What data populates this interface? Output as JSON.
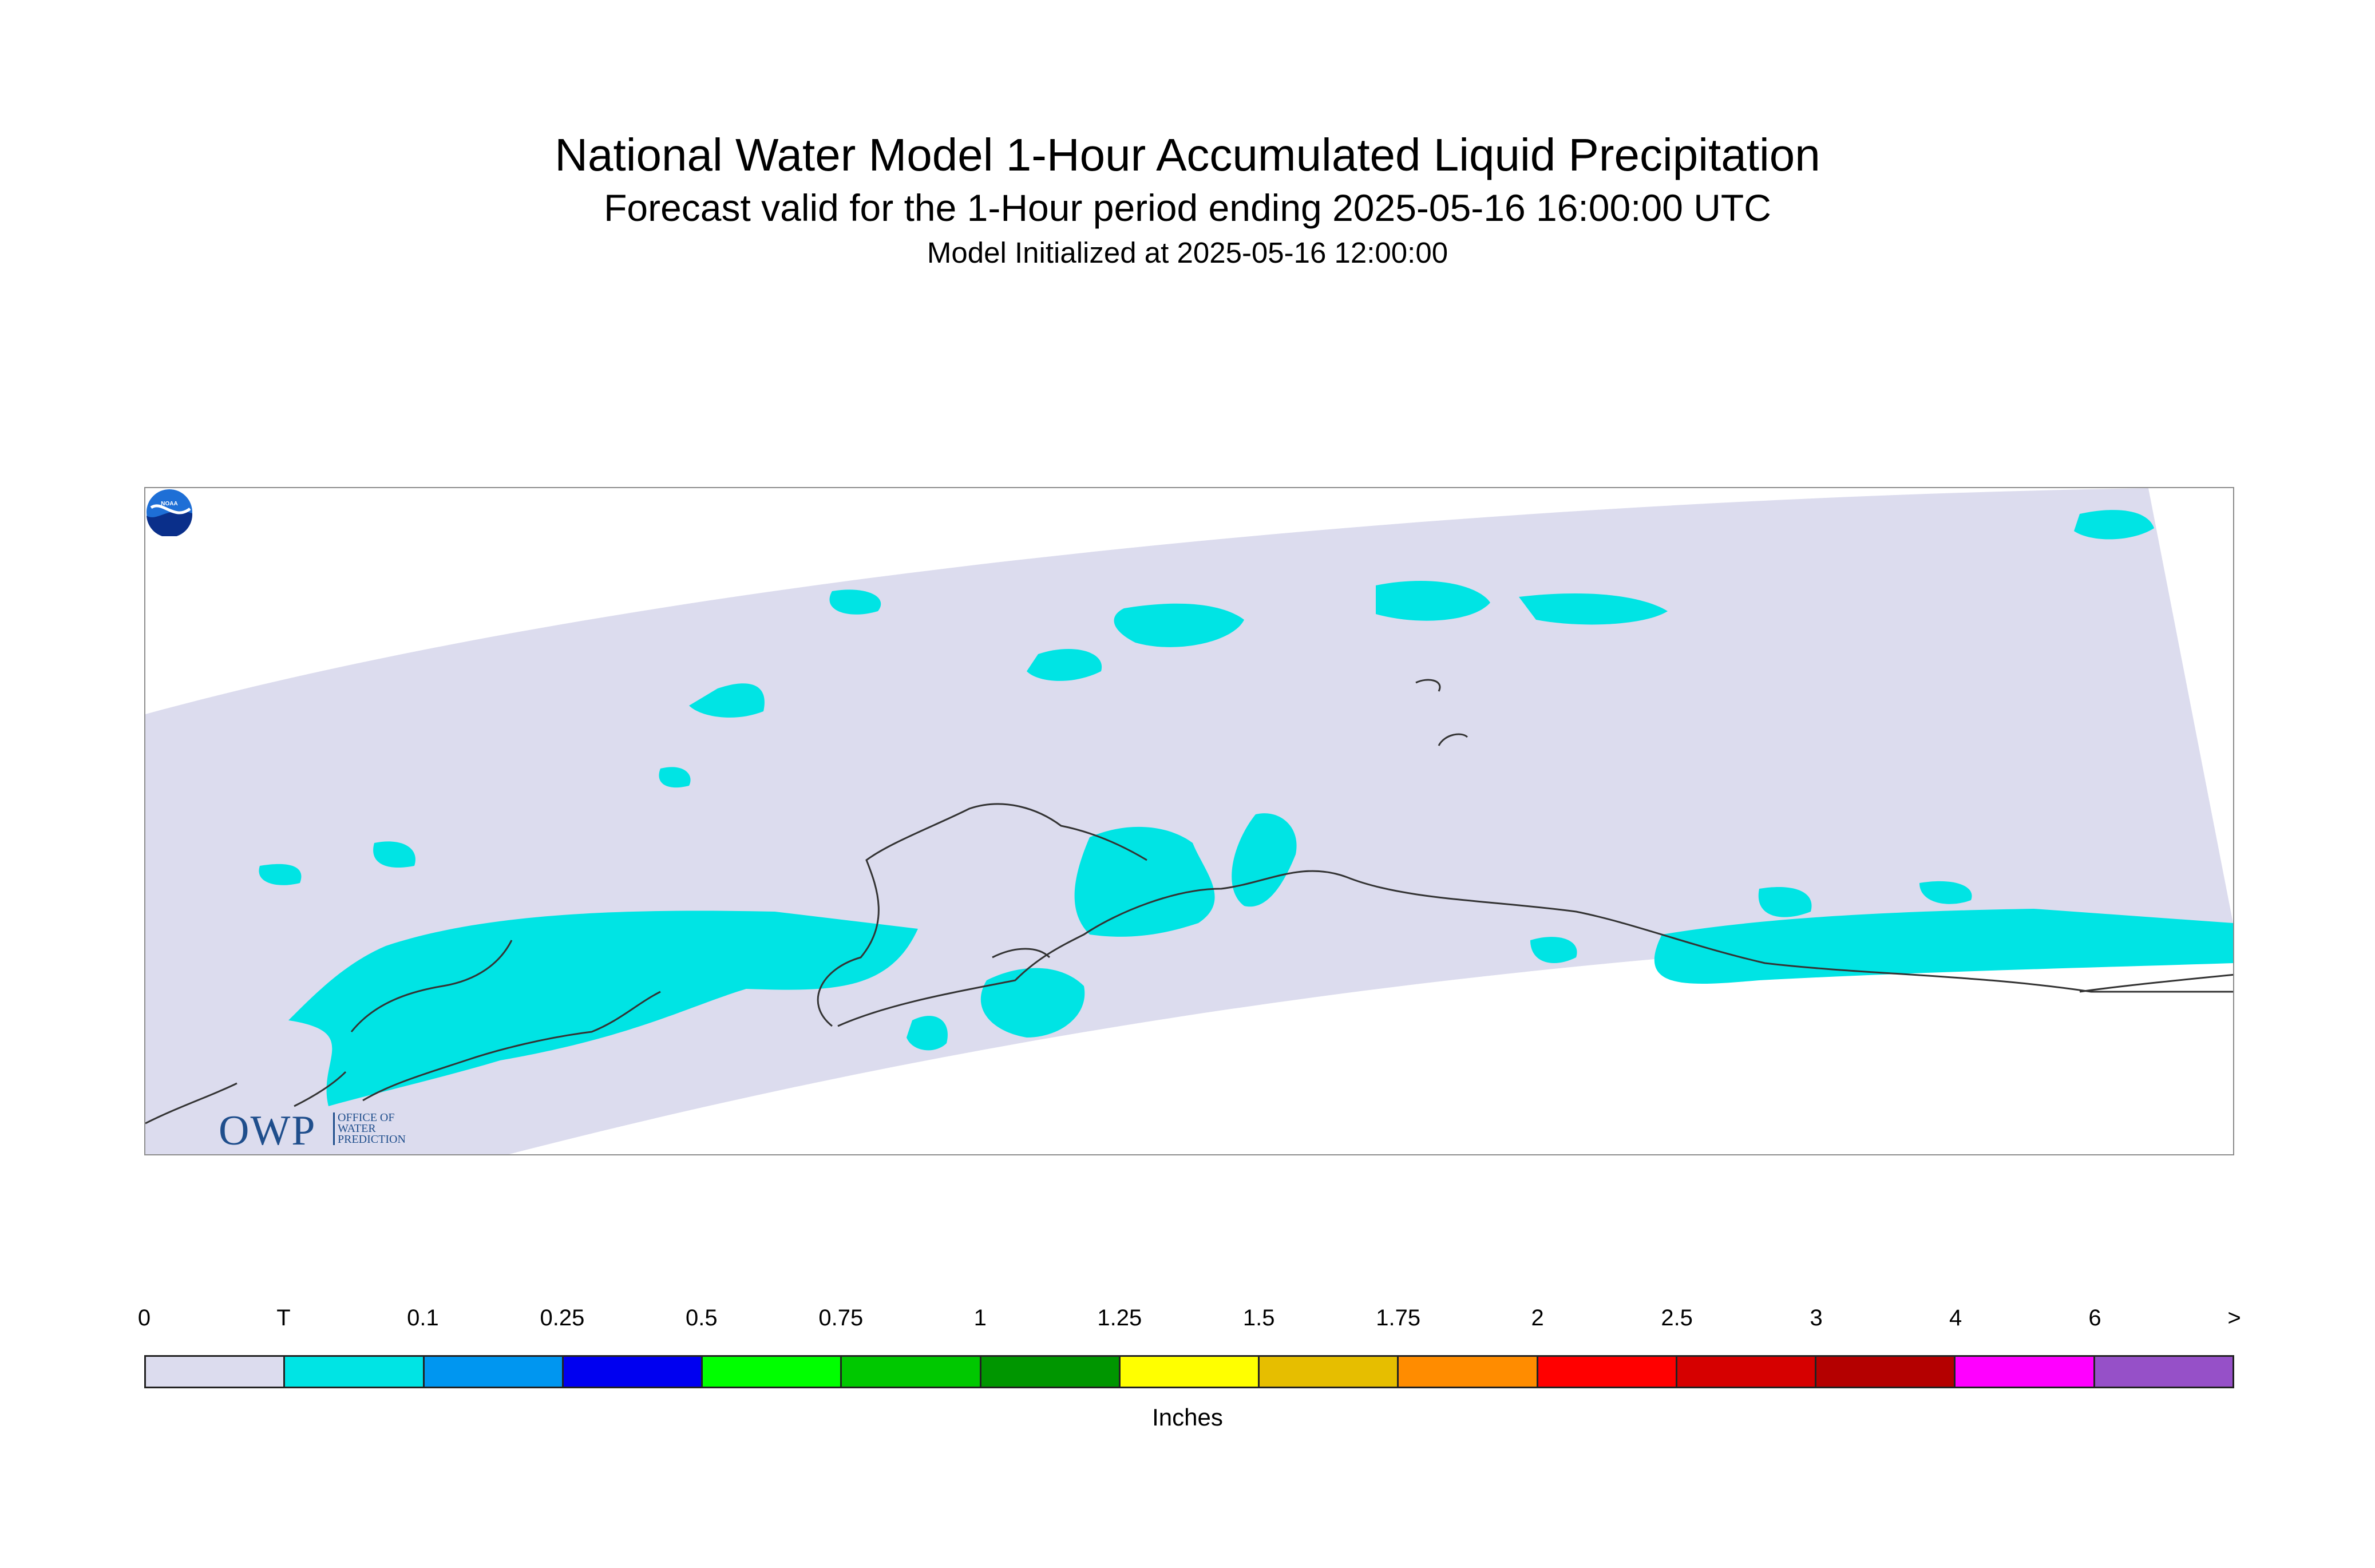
{
  "header": {
    "title": "National Water Model 1-Hour Accumulated Liquid Precipitation",
    "subtitle": "Forecast valid for the 1-Hour period ending 2025-05-16 16:00:00 UTC",
    "init": "Model Initialized at 2025-05-16 12:00:00"
  },
  "map": {
    "domain_color": "#dcdcee",
    "trace_color": "#00e4e4",
    "coastline_color": "#333333",
    "logos": {
      "owp": {
        "mark": "OWP",
        "text": "OFFICE OF WATER PREDICTION"
      },
      "noaa": {
        "text": "NOAA"
      }
    }
  },
  "legend": {
    "units": "Inches",
    "bins": [
      {
        "lower": "0",
        "color": "#dcdcee"
      },
      {
        "lower": "T",
        "color": "#00e4e4"
      },
      {
        "lower": "0.1",
        "color": "#0096f0"
      },
      {
        "lower": "0.25",
        "color": "#0000f0"
      },
      {
        "lower": "0.5",
        "color": "#00ff00"
      },
      {
        "lower": "0.75",
        "color": "#00c800"
      },
      {
        "lower": "1",
        "color": "#009600"
      },
      {
        "lower": "1.25",
        "color": "#ffff00"
      },
      {
        "lower": "1.5",
        "color": "#e6be00"
      },
      {
        "lower": "1.75",
        "color": "#ff8c00"
      },
      {
        "lower": "2",
        "color": "#ff0000"
      },
      {
        "lower": "2.5",
        "color": "#d60000"
      },
      {
        "lower": "3",
        "color": "#b40000"
      },
      {
        "lower": "4",
        "color": "#ff00ff"
      },
      {
        "lower": "6",
        "color": "#9650c8"
      }
    ],
    "end_label": ">"
  }
}
